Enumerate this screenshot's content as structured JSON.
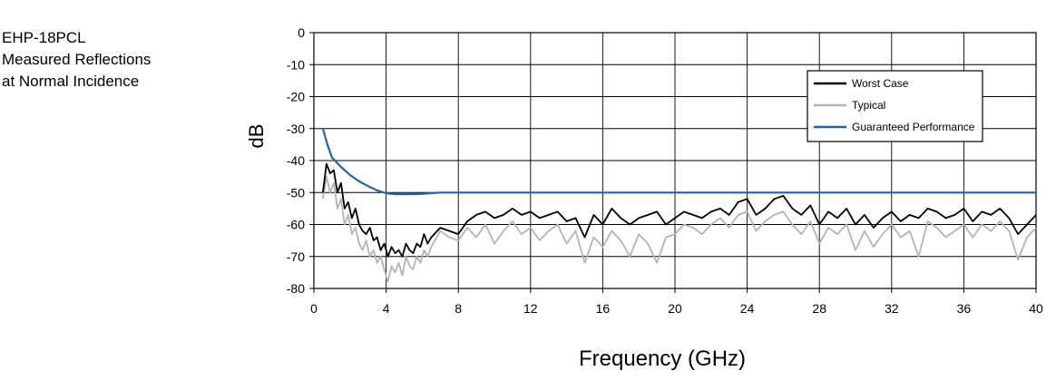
{
  "figure_title": [
    "EHP-18PCL",
    "Measured Reflections",
    "at Normal Incidence"
  ],
  "chart_data": {
    "type": "line",
    "title": "",
    "xlabel": "Frequency (GHz)",
    "ylabel": "dB",
    "xlim": [
      0,
      40
    ],
    "ylim": [
      -80,
      0
    ],
    "xticks": [
      0,
      4,
      8,
      12,
      16,
      20,
      24,
      28,
      32,
      36,
      40
    ],
    "yticks": [
      0,
      -10,
      -20,
      -30,
      -40,
      -50,
      -60,
      -70,
      -80
    ],
    "grid": true,
    "legend_position": "top-right",
    "series": [
      {
        "name": "Worst Case",
        "color": "#000000",
        "x": [
          0.5,
          0.7,
          0.9,
          1.1,
          1.3,
          1.5,
          1.7,
          1.9,
          2.1,
          2.3,
          2.5,
          2.7,
          2.9,
          3.1,
          3.3,
          3.5,
          3.7,
          3.9,
          4.1,
          4.3,
          4.5,
          4.7,
          4.9,
          5.1,
          5.3,
          5.5,
          5.7,
          5.9,
          6.1,
          6.3,
          6.5,
          7.0,
          7.5,
          8.0,
          8.5,
          9.0,
          9.5,
          10.0,
          10.5,
          11.0,
          11.5,
          12.0,
          12.5,
          13.0,
          13.5,
          14.0,
          14.5,
          15.0,
          15.5,
          16.0,
          16.5,
          17.0,
          17.5,
          18.0,
          18.5,
          19.0,
          19.5,
          20.0,
          20.5,
          21.0,
          21.5,
          22.0,
          22.5,
          23.0,
          23.5,
          24.0,
          24.5,
          25.0,
          25.5,
          26.0,
          26.5,
          27.0,
          27.5,
          28.0,
          28.5,
          29.0,
          29.5,
          30.0,
          30.5,
          31.0,
          31.5,
          32.0,
          32.5,
          33.0,
          33.5,
          34.0,
          34.5,
          35.0,
          35.5,
          36.0,
          36.5,
          37.0,
          37.5,
          38.0,
          38.5,
          39.0,
          39.5,
          40.0
        ],
        "y": [
          -50,
          -41,
          -44,
          -43,
          -50,
          -47,
          -55,
          -53,
          -58,
          -55,
          -60,
          -62,
          -63,
          -61,
          -65,
          -64,
          -68,
          -66,
          -70,
          -67,
          -69,
          -68,
          -70,
          -66,
          -68,
          -69,
          -66,
          -67,
          -63,
          -66,
          -64,
          -61,
          -62,
          -63,
          -59,
          -57,
          -56,
          -58,
          -57,
          -55,
          -57,
          -56,
          -58,
          -57,
          -56,
          -59,
          -58,
          -64,
          -57,
          -60,
          -55,
          -58,
          -60,
          -58,
          -57,
          -56,
          -60,
          -58,
          -56,
          -57,
          -58,
          -56,
          -55,
          -57,
          -53,
          -52,
          -57,
          -55,
          -52,
          -51,
          -55,
          -57,
          -54,
          -60,
          -56,
          -58,
          -55,
          -60,
          -57,
          -61,
          -58,
          -56,
          -59,
          -57,
          -58,
          -55,
          -56,
          -58,
          -57,
          -55,
          -59,
          -56,
          -57,
          -55,
          -58,
          -63,
          -60,
          -57
        ]
      },
      {
        "name": "Typical",
        "color": "#b4b4b4",
        "x": [
          0.5,
          0.7,
          0.9,
          1.1,
          1.3,
          1.5,
          1.7,
          1.9,
          2.1,
          2.3,
          2.5,
          2.7,
          2.9,
          3.1,
          3.3,
          3.5,
          3.7,
          3.9,
          4.1,
          4.3,
          4.5,
          4.7,
          4.9,
          5.1,
          5.3,
          5.5,
          5.7,
          5.9,
          6.1,
          6.3,
          6.5,
          7.0,
          7.5,
          8.0,
          8.5,
          9.0,
          9.5,
          10.0,
          10.5,
          11.0,
          11.5,
          12.0,
          12.5,
          13.0,
          13.5,
          14.0,
          14.5,
          15.0,
          15.5,
          16.0,
          16.5,
          17.0,
          17.5,
          18.0,
          18.5,
          19.0,
          19.5,
          20.0,
          20.5,
          21.0,
          21.5,
          22.0,
          22.5,
          23.0,
          23.5,
          24.0,
          24.5,
          25.0,
          25.5,
          26.0,
          26.5,
          27.0,
          27.5,
          28.0,
          28.5,
          29.0,
          29.5,
          30.0,
          30.5,
          31.0,
          31.5,
          32.0,
          32.5,
          33.0,
          33.5,
          34.0,
          34.5,
          35.0,
          35.5,
          36.0,
          36.5,
          37.0,
          37.5,
          38.0,
          38.5,
          39.0,
          39.5,
          40.0
        ],
        "y": [
          -52,
          -45,
          -50,
          -47,
          -55,
          -52,
          -60,
          -57,
          -63,
          -61,
          -66,
          -68,
          -65,
          -70,
          -68,
          -72,
          -70,
          -74,
          -78,
          -73,
          -75,
          -72,
          -76,
          -70,
          -73,
          -74,
          -70,
          -72,
          -68,
          -70,
          -67,
          -62,
          -64,
          -65,
          -61,
          -64,
          -60,
          -66,
          -62,
          -59,
          -63,
          -61,
          -65,
          -62,
          -60,
          -66,
          -62,
          -72,
          -64,
          -67,
          -62,
          -65,
          -70,
          -63,
          -66,
          -72,
          -64,
          -63,
          -60,
          -61,
          -63,
          -60,
          -58,
          -61,
          -57,
          -56,
          -62,
          -59,
          -57,
          -56,
          -60,
          -63,
          -59,
          -66,
          -61,
          -63,
          -60,
          -68,
          -62,
          -67,
          -63,
          -60,
          -64,
          -62,
          -70,
          -59,
          -61,
          -64,
          -62,
          -60,
          -64,
          -60,
          -62,
          -59,
          -62,
          -71,
          -64,
          -61
        ]
      },
      {
        "name": "Guaranteed Performance",
        "color": "#1f65a0",
        "x": [
          0.5,
          0.75,
          1.0,
          1.5,
          2.0,
          2.5,
          3.0,
          3.5,
          4.0,
          4.5,
          5.0,
          5.5,
          6.0,
          6.5,
          7.0,
          40.0
        ],
        "y": [
          -30,
          -35,
          -39,
          -42,
          -44.5,
          -46.5,
          -48,
          -49.3,
          -50.2,
          -50.5,
          -50.5,
          -50.5,
          -50.4,
          -50.2,
          -50,
          -50
        ]
      }
    ]
  }
}
